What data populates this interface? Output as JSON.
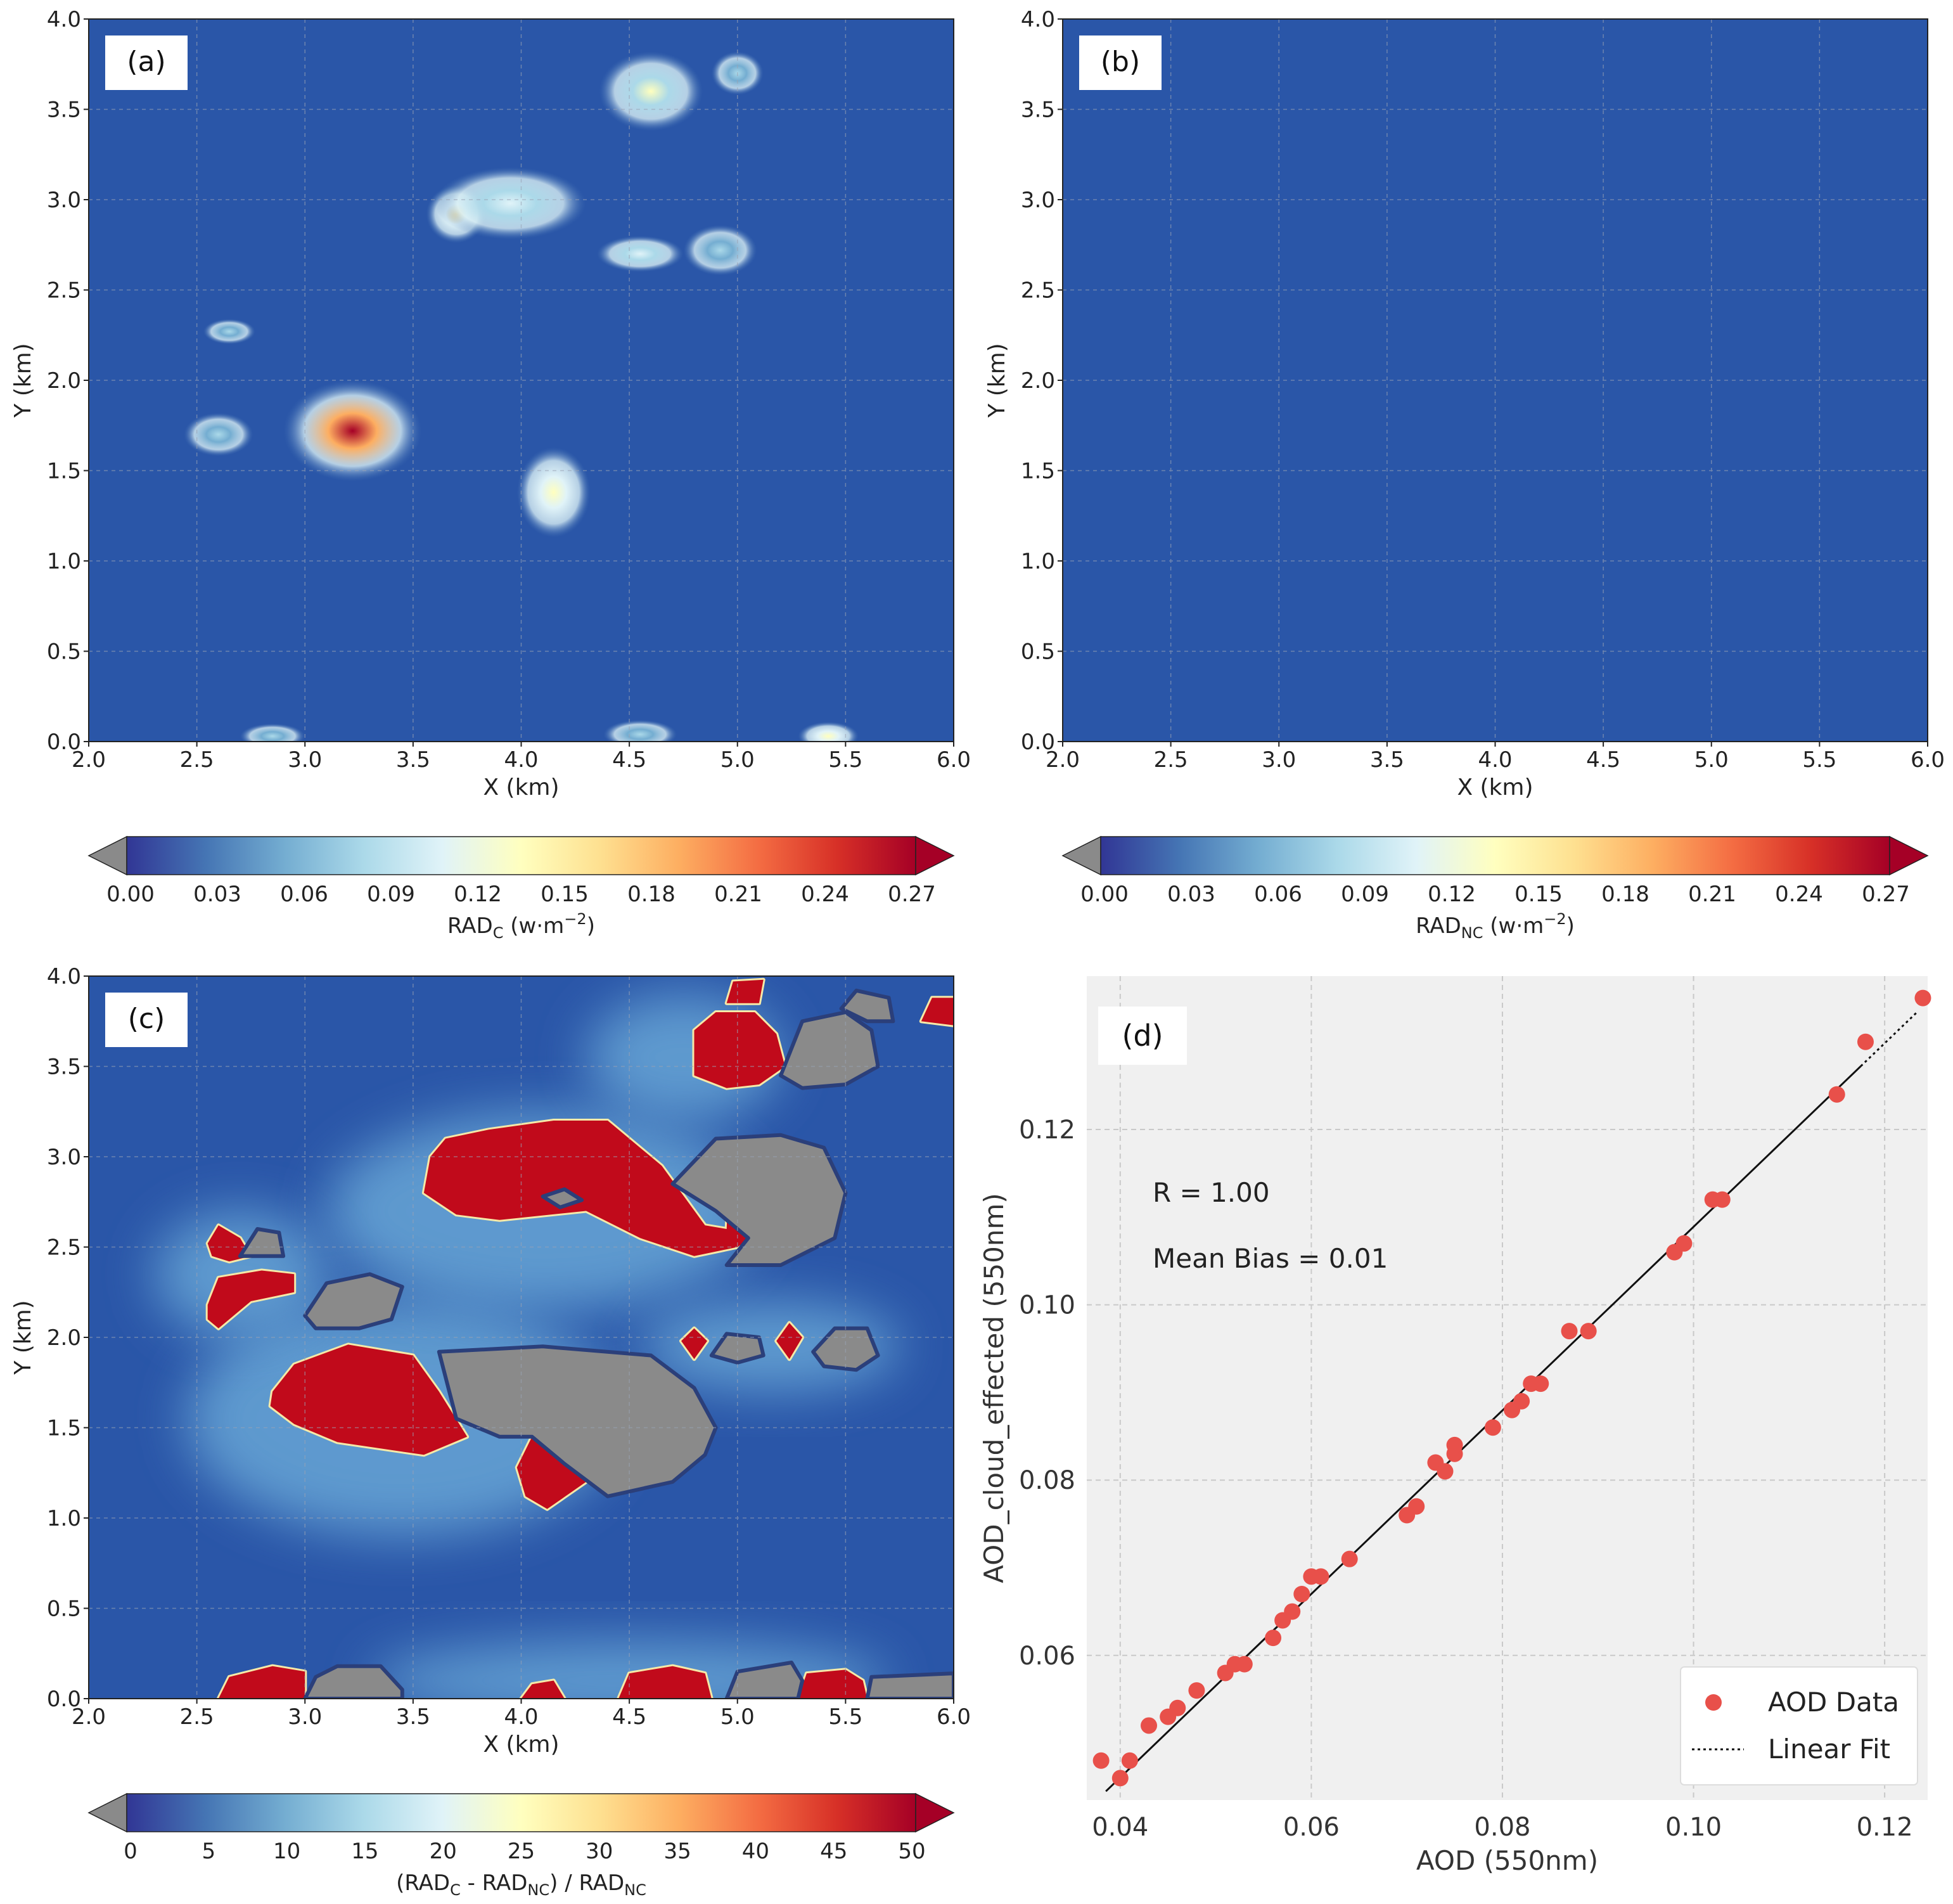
{
  "colors": {
    "field_background": "#2a56a8",
    "contour_red": "#c10a1b",
    "contour_gray": "#8a8a8a",
    "scatter_point": "#e8504a",
    "scatter_bg": "#f0f0f0",
    "fit_line": "#111111"
  },
  "chart_data": [
    {
      "panel_label": "(a)",
      "type": "heatmap",
      "title": "",
      "xlabel": "X (km)",
      "ylabel": "Y (km)",
      "xlim": [
        2.0,
        6.0
      ],
      "ylim": [
        0.0,
        4.0
      ],
      "x_ticks": [
        "2.0",
        "2.5",
        "3.0",
        "3.5",
        "4.0",
        "4.5",
        "5.0",
        "5.5",
        "6.0"
      ],
      "y_ticks": [
        "0.0",
        "0.5",
        "1.0",
        "1.5",
        "2.0",
        "2.5",
        "3.0",
        "3.5",
        "4.0"
      ],
      "grid": true,
      "colorbar": {
        "label_main": "RAD",
        "label_sub": "C",
        "label_unit": " (w·m",
        "label_exp": "−2",
        "label_close": ")",
        "ticks": [
          "0.00",
          "0.03",
          "0.06",
          "0.09",
          "0.12",
          "0.15",
          "0.18",
          "0.21",
          "0.24",
          "0.27"
        ],
        "range": [
          0.0,
          0.27
        ],
        "extend": "both"
      },
      "blobs": [
        {
          "x": 3.22,
          "y": 1.72,
          "rx": 0.32,
          "ry": 0.28,
          "peak": 0.27
        },
        {
          "x": 4.15,
          "y": 1.38,
          "rx": 0.17,
          "ry": 0.25,
          "peak": 0.14
        },
        {
          "x": 3.7,
          "y": 2.92,
          "rx": 0.14,
          "ry": 0.16,
          "peak": 0.15
        },
        {
          "x": 3.95,
          "y": 2.98,
          "rx": 0.35,
          "ry": 0.2,
          "peak": 0.1
        },
        {
          "x": 4.55,
          "y": 2.7,
          "rx": 0.2,
          "ry": 0.1,
          "peak": 0.1
        },
        {
          "x": 4.92,
          "y": 2.72,
          "rx": 0.17,
          "ry": 0.14,
          "peak": 0.08
        },
        {
          "x": 4.6,
          "y": 3.6,
          "rx": 0.24,
          "ry": 0.22,
          "peak": 0.13
        },
        {
          "x": 5.0,
          "y": 3.7,
          "rx": 0.12,
          "ry": 0.12,
          "peak": 0.09
        },
        {
          "x": 2.65,
          "y": 2.27,
          "rx": 0.12,
          "ry": 0.07,
          "peak": 0.08
        },
        {
          "x": 2.6,
          "y": 1.7,
          "rx": 0.16,
          "ry": 0.12,
          "peak": 0.08
        },
        {
          "x": 2.85,
          "y": 0.03,
          "rx": 0.15,
          "ry": 0.07,
          "peak": 0.08
        },
        {
          "x": 4.55,
          "y": 0.04,
          "rx": 0.17,
          "ry": 0.08,
          "peak": 0.08
        },
        {
          "x": 5.42,
          "y": 0.03,
          "rx": 0.14,
          "ry": 0.08,
          "peak": 0.14
        }
      ]
    },
    {
      "panel_label": "(b)",
      "type": "heatmap",
      "title": "",
      "xlabel": "X (km)",
      "ylabel": "Y (km)",
      "xlim": [
        2.0,
        6.0
      ],
      "ylim": [
        0.0,
        4.0
      ],
      "x_ticks": [
        "2.0",
        "2.5",
        "3.0",
        "3.5",
        "4.0",
        "4.5",
        "5.0",
        "5.5",
        "6.0"
      ],
      "y_ticks": [
        "0.0",
        "0.5",
        "1.0",
        "1.5",
        "2.0",
        "2.5",
        "3.0",
        "3.5",
        "4.0"
      ],
      "grid": true,
      "colorbar": {
        "label_main": "RAD",
        "label_sub": "NC",
        "label_unit": " (w·m",
        "label_exp": "−2",
        "label_close": ")",
        "ticks": [
          "0.00",
          "0.03",
          "0.06",
          "0.09",
          "0.12",
          "0.15",
          "0.18",
          "0.21",
          "0.24",
          "0.27"
        ],
        "range": [
          0.0,
          0.27
        ],
        "extend": "both"
      },
      "blobs": []
    },
    {
      "panel_label": "(c)",
      "type": "heatmap",
      "title": "",
      "xlabel": "X (km)",
      "ylabel": "Y (km)",
      "xlim": [
        2.0,
        6.0
      ],
      "ylim": [
        0.0,
        4.0
      ],
      "x_ticks": [
        "2.0",
        "2.5",
        "3.0",
        "3.5",
        "4.0",
        "4.5",
        "5.0",
        "5.5",
        "6.0"
      ],
      "y_ticks": [
        "0.0",
        "0.5",
        "1.0",
        "1.5",
        "2.0",
        "2.5",
        "3.0",
        "3.5",
        "4.0"
      ],
      "grid": true,
      "colorbar": {
        "label_left": "(RAD",
        "label_sub1": "C",
        "label_mid": " - RAD",
        "label_sub2": "NC",
        "label_right": ") / RAD",
        "label_sub3": "NC",
        "ticks": [
          "0",
          "5",
          "10",
          "15",
          "20",
          "25",
          "30",
          "35",
          "40",
          "45",
          "50"
        ],
        "range": [
          0,
          50
        ],
        "extend": "both"
      },
      "glows": [
        {
          "x": 3.45,
          "y": 1.55,
          "rx": 1.0,
          "ry": 0.65
        },
        {
          "x": 4.1,
          "y": 2.7,
          "rx": 1.0,
          "ry": 0.55
        },
        {
          "x": 4.75,
          "y": 3.55,
          "rx": 0.45,
          "ry": 0.35
        },
        {
          "x": 2.7,
          "y": 2.35,
          "rx": 0.4,
          "ry": 0.35
        },
        {
          "x": 4.5,
          "y": 0.1,
          "rx": 1.2,
          "ry": 0.22
        },
        {
          "x": 5.15,
          "y": 1.95,
          "rx": 0.6,
          "ry": 0.25
        }
      ],
      "red_regions": [
        [
          [
            2.85,
            1.7
          ],
          [
            2.95,
            1.85
          ],
          [
            3.2,
            1.96
          ],
          [
            3.5,
            1.9
          ],
          [
            3.62,
            1.7
          ],
          [
            3.75,
            1.45
          ],
          [
            3.55,
            1.35
          ],
          [
            3.15,
            1.42
          ],
          [
            2.95,
            1.52
          ],
          [
            2.84,
            1.62
          ]
        ],
        [
          [
            4.12,
            1.05
          ],
          [
            4.3,
            1.2
          ],
          [
            4.38,
            1.42
          ],
          [
            4.35,
            1.62
          ],
          [
            4.2,
            1.6
          ],
          [
            4.05,
            1.45
          ],
          [
            3.98,
            1.28
          ],
          [
            4.02,
            1.12
          ]
        ],
        [
          [
            3.65,
            3.1
          ],
          [
            3.85,
            3.15
          ],
          [
            4.15,
            3.2
          ],
          [
            4.4,
            3.2
          ],
          [
            4.65,
            2.95
          ],
          [
            4.85,
            2.62
          ],
          [
            4.95,
            2.6
          ],
          [
            4.96,
            2.9
          ],
          [
            5.1,
            2.8
          ],
          [
            5.12,
            2.6
          ],
          [
            5.0,
            2.5
          ],
          [
            4.8,
            2.45
          ],
          [
            4.55,
            2.55
          ],
          [
            4.3,
            2.7
          ],
          [
            3.9,
            2.65
          ],
          [
            3.7,
            2.68
          ],
          [
            3.55,
            2.8
          ],
          [
            3.58,
            3.0
          ]
        ],
        [
          [
            4.8,
            3.45
          ],
          [
            4.8,
            3.7
          ],
          [
            4.9,
            3.8
          ],
          [
            5.08,
            3.8
          ],
          [
            5.18,
            3.68
          ],
          [
            5.22,
            3.5
          ],
          [
            5.1,
            3.4
          ],
          [
            4.95,
            3.38
          ]
        ],
        [
          [
            4.95,
            3.85
          ],
          [
            4.98,
            3.97
          ],
          [
            5.12,
            3.98
          ],
          [
            5.1,
            3.85
          ]
        ],
        [
          [
            5.85,
            3.75
          ],
          [
            5.9,
            3.88
          ],
          [
            6.05,
            3.88
          ],
          [
            6.05,
            3.72
          ]
        ],
        [
          [
            2.55,
            2.52
          ],
          [
            2.6,
            2.62
          ],
          [
            2.7,
            2.55
          ],
          [
            2.75,
            2.45
          ],
          [
            2.65,
            2.42
          ],
          [
            2.57,
            2.45
          ]
        ],
        [
          [
            2.55,
            2.18
          ],
          [
            2.6,
            2.33
          ],
          [
            2.8,
            2.37
          ],
          [
            2.95,
            2.35
          ],
          [
            2.95,
            2.25
          ],
          [
            2.75,
            2.2
          ],
          [
            2.6,
            2.05
          ],
          [
            2.55,
            2.1
          ]
        ],
        [
          [
            4.74,
            1.98
          ],
          [
            4.8,
            2.05
          ],
          [
            4.86,
            1.98
          ],
          [
            4.8,
            1.88
          ]
        ],
        [
          [
            5.18,
            1.98
          ],
          [
            5.24,
            2.08
          ],
          [
            5.3,
            2.0
          ],
          [
            5.24,
            1.88
          ]
        ],
        [
          [
            2.6,
            0.0
          ],
          [
            2.65,
            0.12
          ],
          [
            2.85,
            0.18
          ],
          [
            3.0,
            0.15
          ],
          [
            3.0,
            0.0
          ]
        ],
        [
          [
            4.0,
            0.0
          ],
          [
            4.05,
            0.08
          ],
          [
            4.15,
            0.1
          ],
          [
            4.2,
            0.0
          ]
        ],
        [
          [
            4.45,
            0.0
          ],
          [
            4.5,
            0.14
          ],
          [
            4.7,
            0.18
          ],
          [
            4.85,
            0.14
          ],
          [
            4.88,
            0.0
          ]
        ],
        [
          [
            5.28,
            0.0
          ],
          [
            5.32,
            0.14
          ],
          [
            5.5,
            0.16
          ],
          [
            5.58,
            0.1
          ],
          [
            5.6,
            0.0
          ]
        ]
      ],
      "gray_regions": [
        [
          [
            3.62,
            1.92
          ],
          [
            4.1,
            1.95
          ],
          [
            4.6,
            1.9
          ],
          [
            4.8,
            1.72
          ],
          [
            4.9,
            1.5
          ],
          [
            4.85,
            1.35
          ],
          [
            4.7,
            1.2
          ],
          [
            4.4,
            1.12
          ],
          [
            4.2,
            1.3
          ],
          [
            4.05,
            1.45
          ],
          [
            3.9,
            1.45
          ],
          [
            3.7,
            1.55
          ]
        ],
        [
          [
            4.7,
            2.85
          ],
          [
            4.9,
            3.1
          ],
          [
            5.2,
            3.12
          ],
          [
            5.4,
            3.05
          ],
          [
            5.5,
            2.8
          ],
          [
            5.45,
            2.55
          ],
          [
            5.2,
            2.4
          ],
          [
            4.95,
            2.4
          ],
          [
            5.05,
            2.55
          ],
          [
            4.9,
            2.7
          ]
        ],
        [
          [
            5.2,
            3.45
          ],
          [
            5.3,
            3.75
          ],
          [
            5.5,
            3.8
          ],
          [
            5.62,
            3.7
          ],
          [
            5.65,
            3.5
          ],
          [
            5.5,
            3.4
          ],
          [
            5.3,
            3.38
          ]
        ],
        [
          [
            5.48,
            3.82
          ],
          [
            5.55,
            3.92
          ],
          [
            5.7,
            3.88
          ],
          [
            5.72,
            3.75
          ],
          [
            5.6,
            3.75
          ]
        ],
        [
          [
            2.7,
            2.45
          ],
          [
            2.78,
            2.6
          ],
          [
            2.88,
            2.58
          ],
          [
            2.9,
            2.45
          ]
        ],
        [
          [
            3.0,
            2.12
          ],
          [
            3.1,
            2.3
          ],
          [
            3.3,
            2.35
          ],
          [
            3.45,
            2.28
          ],
          [
            3.4,
            2.1
          ],
          [
            3.25,
            2.05
          ],
          [
            3.05,
            2.05
          ]
        ],
        [
          [
            4.88,
            1.9
          ],
          [
            4.95,
            2.02
          ],
          [
            5.1,
            2.0
          ],
          [
            5.12,
            1.9
          ],
          [
            5.0,
            1.86
          ]
        ],
        [
          [
            5.35,
            1.92
          ],
          [
            5.45,
            2.05
          ],
          [
            5.6,
            2.05
          ],
          [
            5.65,
            1.9
          ],
          [
            5.55,
            1.82
          ],
          [
            5.4,
            1.84
          ]
        ],
        [
          [
            3.0,
            0.0
          ],
          [
            3.05,
            0.12
          ],
          [
            3.15,
            0.18
          ],
          [
            3.35,
            0.18
          ],
          [
            3.45,
            0.05
          ],
          [
            3.45,
            0.0
          ]
        ],
        [
          [
            4.95,
            0.0
          ],
          [
            5.0,
            0.15
          ],
          [
            5.25,
            0.2
          ],
          [
            5.3,
            0.1
          ],
          [
            5.28,
            0.0
          ]
        ],
        [
          [
            5.6,
            0.0
          ],
          [
            5.62,
            0.12
          ],
          [
            6.0,
            0.14
          ],
          [
            6.0,
            0.0
          ]
        ],
        [
          [
            4.1,
            2.78
          ],
          [
            4.2,
            2.82
          ],
          [
            4.28,
            2.76
          ],
          [
            4.18,
            2.72
          ]
        ]
      ]
    },
    {
      "panel_label": "(d)",
      "type": "scatter",
      "title": "",
      "xlabel": "AOD (550nm)",
      "ylabel": "AOD_cloud_effected (550nm)",
      "xlim": [
        0.0365,
        0.1245
      ],
      "ylim": [
        0.0435,
        0.1375
      ],
      "x_ticks": [
        0.04,
        0.06,
        0.08,
        0.1,
        0.12
      ],
      "y_ticks": [
        0.06,
        0.08,
        0.1,
        0.12
      ],
      "x_tick_labels": [
        "0.04",
        "0.06",
        "0.08",
        "0.10",
        "0.12"
      ],
      "y_tick_labels": [
        "0.06",
        "0.08",
        "0.10",
        "0.12"
      ],
      "grid": true,
      "annotations": [
        "R = 1.00",
        "Mean Bias = 0.01"
      ],
      "legend": {
        "position": "bottom-right",
        "entries": [
          "AOD Data",
          "Linear Fit"
        ]
      },
      "fit_line": {
        "x": [
          0.0385,
          0.1235
        ],
        "y": [
          0.0445,
          0.1335
        ]
      },
      "series": [
        {
          "name": "AOD Data",
          "x": [
            0.038,
            0.04,
            0.041,
            0.043,
            0.045,
            0.046,
            0.048,
            0.051,
            0.052,
            0.053,
            0.056,
            0.057,
            0.058,
            0.059,
            0.06,
            0.061,
            0.064,
            0.07,
            0.071,
            0.073,
            0.074,
            0.075,
            0.075,
            0.079,
            0.081,
            0.082,
            0.083,
            0.084,
            0.087,
            0.089,
            0.098,
            0.099,
            0.102,
            0.103,
            0.115,
            0.118,
            0.124
          ],
          "y": [
            0.048,
            0.046,
            0.048,
            0.052,
            0.053,
            0.054,
            0.056,
            0.058,
            0.059,
            0.059,
            0.062,
            0.064,
            0.065,
            0.067,
            0.069,
            0.069,
            0.071,
            0.076,
            0.077,
            0.082,
            0.081,
            0.083,
            0.084,
            0.086,
            0.088,
            0.089,
            0.091,
            0.091,
            0.097,
            0.097,
            0.106,
            0.107,
            0.112,
            0.112,
            0.124,
            0.13,
            0.135
          ]
        }
      ]
    }
  ]
}
